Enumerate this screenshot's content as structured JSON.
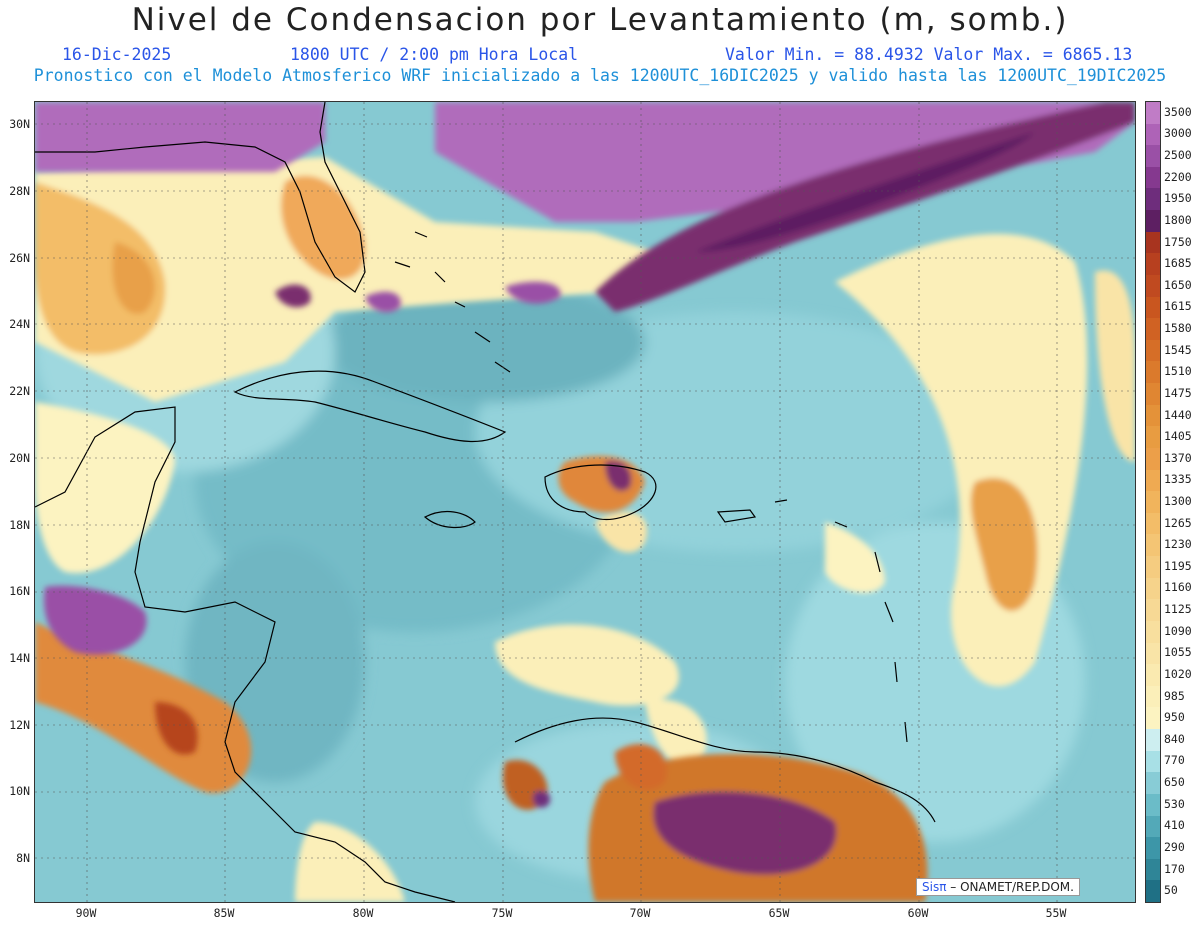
{
  "title": "Nivel de Condensacion por Levantamiento (m, somb.)",
  "date_label": "16-Dic-2025",
  "time_label": "1800 UTC / 2:00 pm Hora Local",
  "value_range_label": "Valor Min. = 88.4932  Valor Max. = 6865.13",
  "run_label": "Pronostico con el Modelo Atmosferico WRF inicializado a las 1200UTC_16DIC2025 y valido hasta las  1200UTC_19DIC2025",
  "credit": {
    "sis": "Sisπ",
    "rest": "– ONAMET/REP.DOM."
  },
  "y_axis_labels": [
    "30N",
    "28N",
    "26N",
    "24N",
    "22N",
    "20N",
    "18N",
    "16N",
    "14N",
    "12N",
    "10N",
    "8N"
  ],
  "x_axis_labels": [
    "90W",
    "85W",
    "80W",
    "75W",
    "70W",
    "65W",
    "60W",
    "55W"
  ],
  "colorbar": {
    "levels": [
      "3500",
      "3000",
      "2500",
      "2200",
      "1950",
      "1800",
      "1750",
      "1685",
      "1650",
      "1615",
      "1580",
      "1545",
      "1510",
      "1475",
      "1440",
      "1405",
      "1370",
      "1335",
      "1300",
      "1265",
      "1230",
      "1195",
      "1160",
      "1125",
      "1090",
      "1055",
      "1020",
      "985",
      "950",
      "840",
      "770",
      "650",
      "530",
      "410",
      "290",
      "170",
      "50"
    ],
    "colors": [
      "#c07cc6",
      "#ae63b7",
      "#9a50a6",
      "#85398f",
      "#6e2d7c",
      "#5d1f62",
      "#a8341f",
      "#b7401f",
      "#c04a20",
      "#c9561f",
      "#d06223",
      "#d66e27",
      "#db7a2c",
      "#e08632",
      "#e49239",
      "#e89c41",
      "#ec9f49",
      "#efaa52",
      "#f1b45c",
      "#f3bd68",
      "#f4c574",
      "#f5cc80",
      "#f6d38b",
      "#f7d995",
      "#f8df9e",
      "#f9e4a7",
      "#faeab0",
      "#fbefb9",
      "#fcf3c1",
      "#cdeef0",
      "#a8e0e6",
      "#88ccd6",
      "#6bbcc8",
      "#53a9b8",
      "#3d96a8",
      "#2f8597",
      "#1f7085"
    ]
  }
}
